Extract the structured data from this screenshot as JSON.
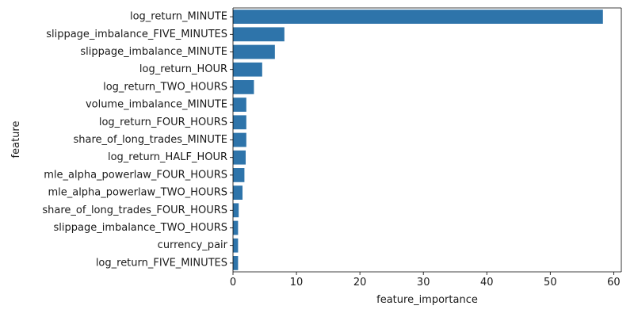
{
  "chart_data": {
    "type": "bar",
    "orientation": "horizontal",
    "xlabel": "feature_importance",
    "ylabel": "feature",
    "xlim": [
      0,
      61.2
    ],
    "xticks": [
      0,
      10,
      20,
      30,
      40,
      50,
      60
    ],
    "grid": false,
    "bar_color": "#2e74aa",
    "categories": [
      "log_return_MINUTE",
      "slippage_imbalance_FIVE_MINUTES",
      "slippage_imbalance_MINUTE",
      "log_return_HOUR",
      "log_return_TWO_HOURS",
      "volume_imbalance_MINUTE",
      "log_return_FOUR_HOURS",
      "share_of_long_trades_MINUTE",
      "log_return_HALF_HOUR",
      "mle_alpha_powerlaw_FOUR_HOURS",
      "mle_alpha_powerlaw_TWO_HOURS",
      "share_of_long_trades_FOUR_HOURS",
      "slippage_imbalance_TWO_HOURS",
      "currency_pair",
      "log_return_FIVE_MINUTES"
    ],
    "values": [
      58.3,
      8.1,
      6.6,
      4.6,
      3.3,
      2.1,
      2.1,
      2.1,
      2.0,
      1.8,
      1.5,
      0.9,
      0.8,
      0.8,
      0.8
    ]
  }
}
